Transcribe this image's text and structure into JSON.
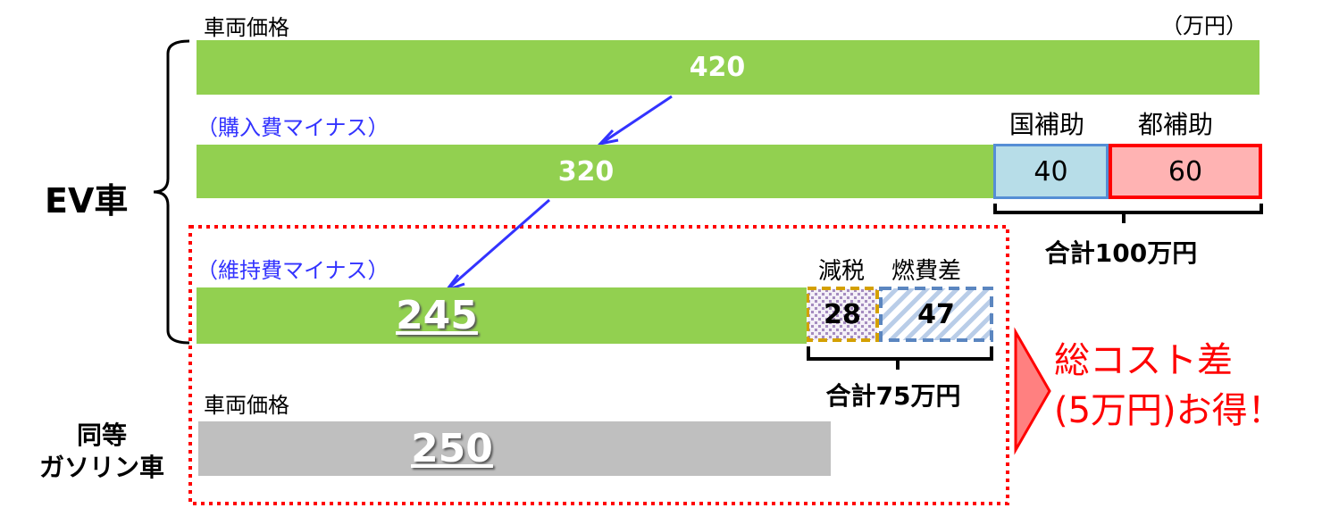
{
  "unit_label": "（万円）",
  "ev": {
    "label": "EV車",
    "price_label": "車両価格",
    "price_value": "420",
    "purchase_label": "（購入費マイナス）",
    "purchase_value": "320",
    "subsidies": [
      {
        "label": "国補助",
        "value": "40"
      },
      {
        "label": "都補助",
        "value": "60"
      }
    ],
    "subsidy_total": "合計100万円",
    "maintenance_label": "（維持費マイナス）",
    "maintenance_value": "245",
    "savings": [
      {
        "label": "減税",
        "value": "28"
      },
      {
        "label": "燃費差",
        "value": "47"
      }
    ],
    "savings_total": "合計75万円"
  },
  "gas": {
    "label_line1": "同等",
    "label_line2": "ガソリン車",
    "price_label": "車両価格",
    "price_value": "250"
  },
  "callout": {
    "line1": "総コスト差",
    "line2": "(5万円)お得！"
  },
  "colors": {
    "bar_green": "#92d050",
    "bar_gray": "#bfbfbf",
    "national_fill": "#b7dde8",
    "national_border": "#558ed5",
    "metro_fill": "#ffb3b3",
    "metro_border": "#ff0000",
    "arrow": "#3333ff",
    "highlight": "#ff0000"
  }
}
